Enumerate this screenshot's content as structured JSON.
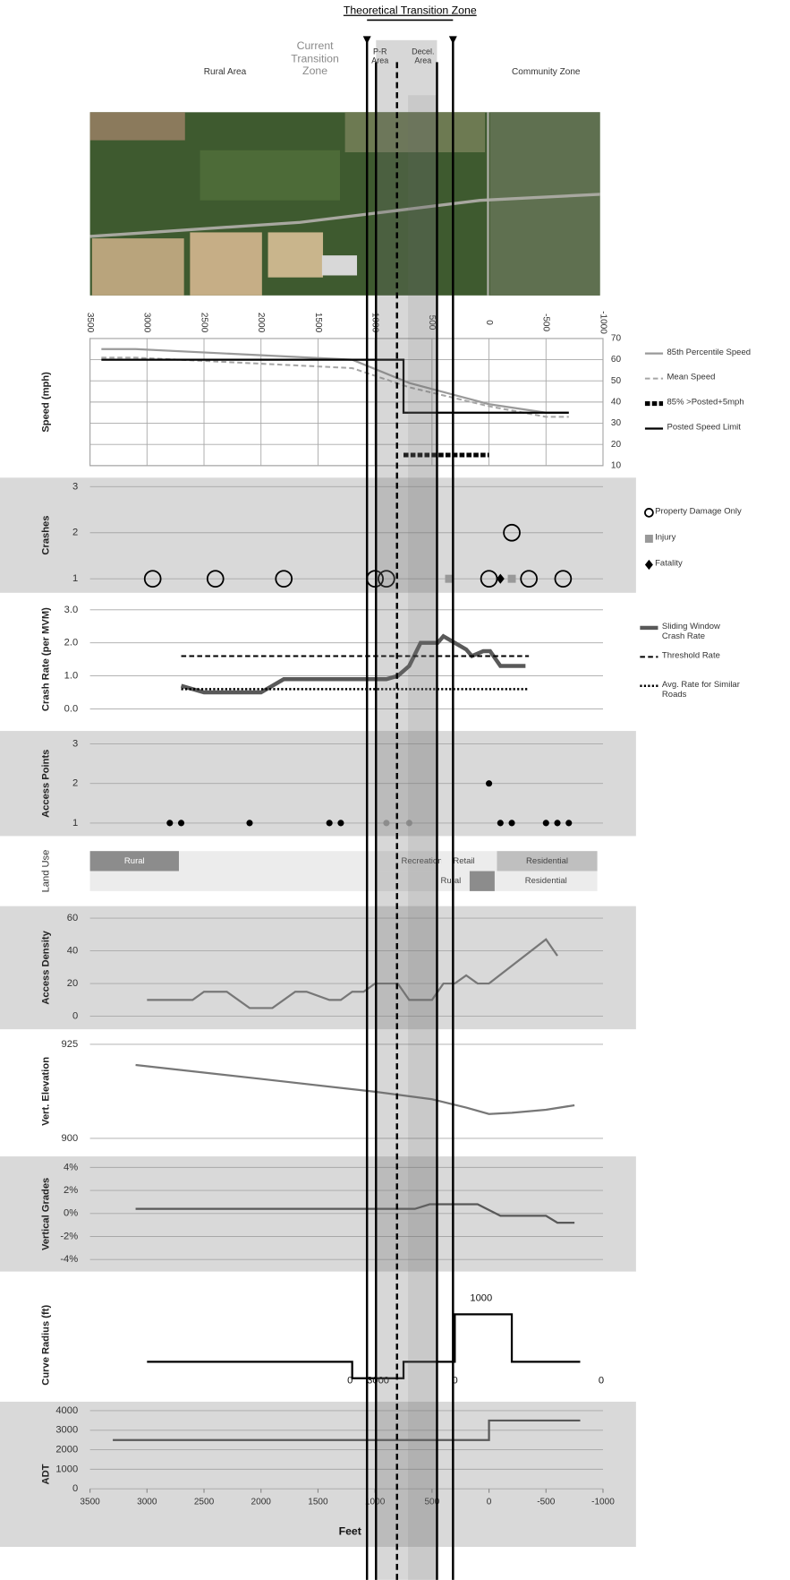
{
  "header": {
    "title": "Theoretical Transition Zone",
    "current_zone": "Current Transition Zone",
    "pr_area": "P-R Area",
    "decel_area": "Decel. Area",
    "rural_area": "Rural Area",
    "community_zone": "Community Zone"
  },
  "land_use": {
    "label": "Land Use",
    "rows": [
      [
        {
          "label": "Rural",
          "start": 3500,
          "end": 2720,
          "color": "#8c8c8c"
        },
        {
          "start": 2720,
          "end": 700,
          "color": "#ececec"
        },
        {
          "label": "Recreational",
          "start": 700,
          "end": 420,
          "color": "#ececec"
        },
        {
          "label": "Retail",
          "start": 420,
          "end": 20,
          "color": "#ececec"
        },
        {
          "start": 20,
          "end": -70,
          "color": "#ececec"
        },
        {
          "label": "Residential",
          "start": -70,
          "end": -950,
          "color": "#bfbfbf"
        }
      ],
      [
        {
          "start": 3500,
          "end": 500,
          "color": "#ececec"
        },
        {
          "label": "Rural",
          "start": 500,
          "end": 170,
          "color": "#ececec"
        },
        {
          "start": 170,
          "end": -50,
          "color": "#8c8c8c"
        },
        {
          "label": "Residential",
          "start": -50,
          "end": -950,
          "color": "#ececec"
        }
      ]
    ]
  },
  "chart_data": [
    {
      "type": "line",
      "ylabel": "Speed (mph)",
      "xlim": [
        3500,
        -1000
      ],
      "xticks": [
        3500,
        3000,
        2500,
        2000,
        1500,
        1000,
        500,
        0,
        -500,
        -1000
      ],
      "ylim": [
        10,
        70
      ],
      "yticks": [
        10,
        20,
        30,
        40,
        50,
        60,
        70
      ],
      "grid": true,
      "legend": "right",
      "series": [
        {
          "name": "85th Percentile Speed",
          "color": "#9a9a9a",
          "style": "solid",
          "x": [
            3400,
            3100,
            1200,
            700,
            0,
            -500,
            -700
          ],
          "values": [
            65,
            65,
            60,
            49,
            39,
            35,
            35
          ]
        },
        {
          "name": "Mean Speed",
          "color": "#a6a6a6",
          "style": "dashed",
          "x": [
            3400,
            3100,
            1200,
            700,
            0,
            -500,
            -700
          ],
          "values": [
            61,
            61,
            56,
            47,
            38,
            33,
            33
          ]
        },
        {
          "name": "85% >Posted+5mph",
          "color": "#000000",
          "style": "thick-dashed",
          "x": [
            750,
            0
          ],
          "values": [
            15,
            15
          ]
        },
        {
          "name": "Posted Speed Limit",
          "color": "#000000",
          "style": "solid",
          "x": [
            3400,
            750,
            750,
            -700
          ],
          "values": [
            60,
            60,
            35,
            35
          ]
        }
      ]
    },
    {
      "type": "scatter",
      "ylabel": "Crashes",
      "xlim": [
        3500,
        -1000
      ],
      "ylim": [
        1,
        3
      ],
      "yticks": [
        1,
        2,
        3
      ],
      "grid": true,
      "background": "#d9d9d9",
      "legend": "right",
      "series": [
        {
          "name": "Property Damage Only",
          "color": "#000000",
          "marker": "open-circle",
          "x": [
            2950,
            2400,
            1800,
            1000,
            900,
            0,
            -200,
            -350,
            -650
          ],
          "values": [
            1,
            1,
            1,
            1,
            1,
            1,
            2,
            1,
            1
          ]
        },
        {
          "name": "Injury",
          "color": "#999999",
          "marker": "square",
          "x": [
            350,
            -200
          ],
          "values": [
            1,
            1
          ]
        },
        {
          "name": "Fatality",
          "color": "#000000",
          "marker": "diamond",
          "x": [
            -100
          ],
          "values": [
            1
          ]
        }
      ]
    },
    {
      "type": "line",
      "ylabel": "Crash Rate (per MVM)",
      "xlim": [
        3500,
        -1000
      ],
      "ylim": [
        0,
        3
      ],
      "yticks": [
        {
          "value": 0,
          "label": "0.0"
        },
        {
          "value": 1,
          "label": "1.0"
        },
        {
          "value": 2,
          "label": "2.0"
        },
        {
          "value": 3,
          "label": "3.0"
        }
      ],
      "grid": true,
      "legend": "right",
      "series": [
        {
          "name": "Sliding Window Crash Rate",
          "color": "#595959",
          "style": "thick",
          "x": [
            2700,
            2500,
            2000,
            1800,
            1000,
            900,
            800,
            700,
            600,
            450,
            400,
            300,
            200,
            150,
            50,
            -10,
            -100,
            -320
          ],
          "values": [
            0.7,
            0.5,
            0.5,
            0.9,
            0.9,
            0.9,
            1.0,
            1.3,
            2.0,
            2.0,
            2.2,
            2.0,
            1.8,
            1.6,
            1.75,
            1.75,
            1.3,
            1.3
          ]
        },
        {
          "name": "Threshold Rate",
          "color": "#000000",
          "style": "dashed",
          "x": [
            2700,
            -350
          ],
          "values": [
            1.6,
            1.6
          ]
        },
        {
          "name": "Avg. Rate for Similar Roads",
          "color": "#000000",
          "style": "dotted",
          "x": [
            2700,
            -350
          ],
          "values": [
            0.6,
            0.6
          ]
        }
      ]
    },
    {
      "type": "scatter",
      "ylabel": "Access Points",
      "xlim": [
        3500,
        -1000
      ],
      "ylim": [
        1,
        3
      ],
      "yticks": [
        1,
        2,
        3
      ],
      "grid": true,
      "background": "#d9d9d9",
      "series": [
        {
          "color": "#000000",
          "marker": "dot",
          "x": [
            2800,
            2700,
            2100,
            1400,
            1300,
            0,
            -100,
            -200,
            -500,
            -600,
            -700
          ],
          "values": [
            1,
            1,
            1,
            1,
            1,
            2,
            1,
            1,
            1,
            1,
            1
          ]
        },
        {
          "color": "#999999",
          "marker": "dot",
          "x": [
            900,
            700
          ],
          "values": [
            1,
            1
          ]
        }
      ]
    },
    {
      "type": "line",
      "ylabel": "Access Density",
      "xlim": [
        3500,
        -1000
      ],
      "ylim": [
        0,
        60
      ],
      "yticks": [
        0,
        20,
        40,
        60
      ],
      "grid": true,
      "background": "#d9d9d9",
      "series": [
        {
          "color": "#777777",
          "style": "solid",
          "x": [
            3000,
            2600,
            2500,
            2300,
            2100,
            1900,
            1700,
            1600,
            1400,
            1300,
            1200,
            1100,
            1000,
            800,
            700,
            500,
            400,
            300,
            200,
            100,
            0,
            -500,
            -600
          ],
          "values": [
            10,
            10,
            15,
            15,
            5,
            5,
            15,
            15,
            10,
            10,
            15,
            15,
            20,
            20,
            10,
            10,
            20,
            20,
            25,
            20,
            20,
            47,
            37
          ]
        }
      ]
    },
    {
      "type": "line",
      "ylabel": "Vert. Elevation",
      "xlim": [
        3500,
        -1000
      ],
      "ylim": [
        900,
        925
      ],
      "yticks": [
        900,
        925
      ],
      "grid": true,
      "series": [
        {
          "color": "#777777",
          "style": "solid",
          "x": [
            3100,
            2000,
            1000,
            500,
            200,
            0,
            -200,
            -500,
            -750
          ],
          "values": [
            919.5,
            915.8,
            912.4,
            910.4,
            908.2,
            906.5,
            906.8,
            907.6,
            908.8
          ]
        }
      ]
    },
    {
      "type": "line",
      "ylabel": "Vertical Grades",
      "xlim": [
        3500,
        -1000
      ],
      "ylim": [
        -4,
        4
      ],
      "yticks": [
        {
          "value": 4,
          "label": "4%"
        },
        {
          "value": 2,
          "label": "2%"
        },
        {
          "value": 0,
          "label": "0%"
        },
        {
          "value": -2,
          "label": "-2%"
        },
        {
          "value": -4,
          "label": "-4%"
        }
      ],
      "grid": true,
      "background": "#d9d9d9",
      "series": [
        {
          "color": "#595959",
          "style": "solid",
          "x": [
            3100,
            650,
            520,
            100,
            -100,
            -500,
            -600,
            -750
          ],
          "values": [
            0.4,
            0.4,
            0.8,
            0.8,
            -0.2,
            -0.2,
            -0.8,
            -0.8
          ]
        }
      ]
    },
    {
      "type": "line",
      "ylabel": "Curve Radius (ft)",
      "xlim": [
        3500,
        -1000
      ],
      "ylim": [
        -400,
        1100
      ],
      "series": [
        {
          "color": "#000000",
          "style": "solid",
          "x": [
            3000,
            1200,
            1200,
            750,
            750,
            300,
            300,
            -200,
            -200,
            -800
          ],
          "values": [
            0,
            0,
            -350,
            -350,
            0,
            0,
            1000,
            1000,
            0,
            0
          ]
        }
      ],
      "annotations": [
        {
          "x": 1219,
          "label": "0"
        },
        {
          "x": 973,
          "label": "3000"
        },
        {
          "x": 298,
          "label": "0"
        },
        {
          "x": 69,
          "y": 1000,
          "label": "1000"
        },
        {
          "x": -984,
          "label": "0"
        }
      ]
    },
    {
      "type": "line",
      "ylabel": "ADT",
      "xlabel": "Feet",
      "xlim": [
        3500,
        -1000
      ],
      "xticks": [
        3500,
        3000,
        2500,
        2000,
        1500,
        1000,
        500,
        0,
        -500,
        -1000
      ],
      "ylim": [
        0,
        4000
      ],
      "yticks": [
        0,
        1000,
        2000,
        3000,
        4000
      ],
      "grid": true,
      "background": "#d9d9d9",
      "series": [
        {
          "color": "#595959",
          "style": "solid",
          "x": [
            3300,
            0,
            0,
            -800
          ],
          "values": [
            2500,
            2500,
            3500,
            3500
          ]
        }
      ]
    }
  ]
}
